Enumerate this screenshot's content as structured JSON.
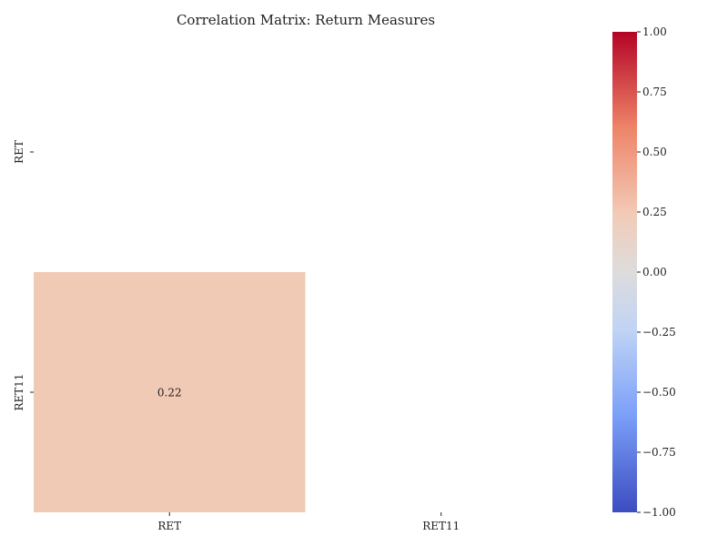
{
  "chart_data": {
    "type": "heatmap",
    "title": "Correlation Matrix: Return Measures",
    "rows": [
      "RET",
      "RET11"
    ],
    "columns": [
      "RET",
      "RET11"
    ],
    "cells": [
      {
        "row": "RET11",
        "col": "RET",
        "value": 0.22,
        "label": "0.22",
        "color": "#f1cab6"
      }
    ],
    "masked": "upper triangle including diagonal",
    "colorbar": {
      "colormap": "coolwarm",
      "range": [
        -1.0,
        1.0
      ],
      "ticks": [
        {
          "value": 1.0,
          "label": "1.00"
        },
        {
          "value": 0.75,
          "label": "0.75"
        },
        {
          "value": 0.5,
          "label": "0.50"
        },
        {
          "value": 0.25,
          "label": "0.25"
        },
        {
          "value": 0.0,
          "label": "0.00"
        },
        {
          "value": -0.25,
          "label": "−0.25"
        },
        {
          "value": -0.5,
          "label": "−0.50"
        },
        {
          "value": -0.75,
          "label": "−0.75"
        },
        {
          "value": -1.0,
          "label": "−1.00"
        }
      ],
      "colors": {
        "min": "#3b4cc0",
        "low": "#7b9ff9",
        "lowmid": "#c0d4f5",
        "mid": "#dddcdc",
        "highmid": "#f2cbb7",
        "high": "#ee8468",
        "max": "#b40426"
      }
    }
  }
}
